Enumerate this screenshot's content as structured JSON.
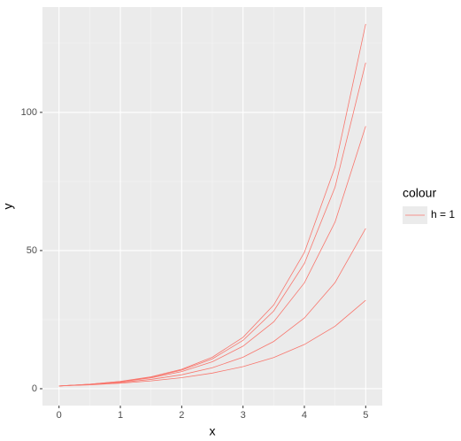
{
  "chart_data": {
    "type": "line",
    "x_label": "x",
    "y_label": "y",
    "legend_title": "colour",
    "x": [
      0,
      0.5,
      1,
      1.5,
      2,
      2.5,
      3,
      3.5,
      4,
      4.5,
      5
    ],
    "series": [
      {
        "name": "h = 1",
        "color": "#F8766D",
        "lines": [
          [
            1,
            1.63,
            2.65,
            4.31,
            7.02,
            11.4,
            18.6,
            30.3,
            49.3,
            80.2,
            132
          ],
          [
            1,
            1.61,
            2.6,
            4.18,
            6.73,
            10.8,
            17.5,
            28.1,
            45.3,
            72.9,
            118
          ],
          [
            1,
            1.58,
            2.49,
            3.92,
            6.19,
            9.75,
            15.4,
            24.2,
            38.3,
            60.3,
            95
          ],
          [
            1,
            1.5,
            2.25,
            3.38,
            5.06,
            7.59,
            11.4,
            17.1,
            25.6,
            38.4,
            58
          ],
          [
            1,
            1.41,
            2,
            2.83,
            4,
            5.66,
            8,
            11.3,
            16,
            22.6,
            32
          ]
        ]
      }
    ],
    "xlim": [
      -0.27,
      5.27
    ],
    "xticks": [
      0,
      1,
      2,
      3,
      4,
      5
    ],
    "ylim": [
      -6.1,
      138.1
    ],
    "yticks": [
      0,
      50,
      100
    ],
    "grid": true
  }
}
